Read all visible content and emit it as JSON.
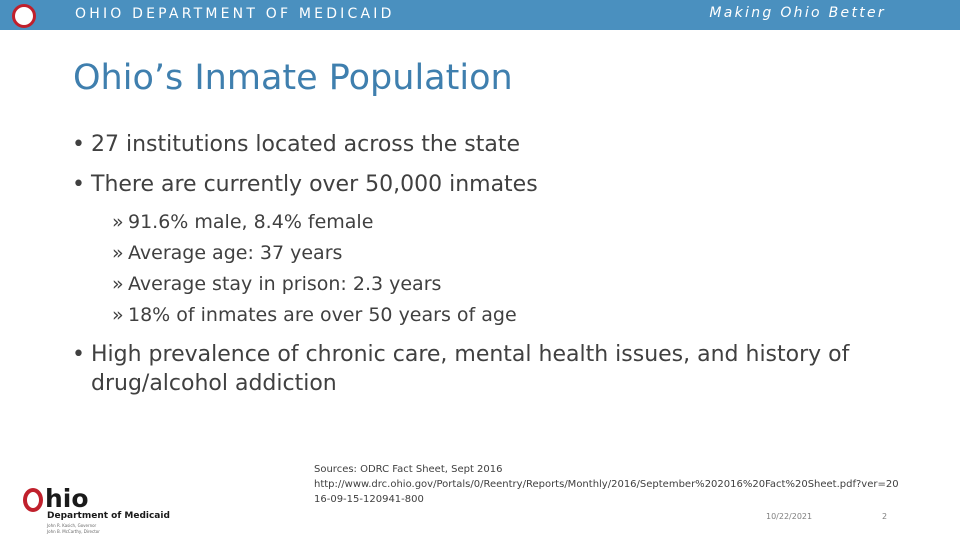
{
  "header": {
    "department": "OHIO DEPARTMENT OF MEDICAID",
    "tagline": "Making Ohio Better",
    "logo_icon": "ohio-circle-logo-icon",
    "bar_color": "#4a90bf",
    "logo_color": "#c0202c"
  },
  "slide": {
    "title": "Ohio’s Inmate Population",
    "bullet_symbol": "•",
    "sub_bullet_symbol": "»",
    "bullets": [
      "27 institutions located across the state",
      "There are currently over 50,000 inmates",
      "High prevalence of chronic care, mental health issues, and history of drug/alcohol addiction"
    ],
    "sub_bullets": [
      "91.6% male, 8.4% female",
      "Average age:  37 years",
      "Average stay in prison: 2.3 years",
      "18% of inmates are over 50 years of age"
    ]
  },
  "sources": {
    "label": "Sources: ODRC Fact Sheet, Sept 2016",
    "url": "http://www.drc.ohio.gov/Portals/0/Reentry/Reports/Monthly/2016/September%202016%20Fact%20Sheet.pdf?ver=2016-09-15-120941-800"
  },
  "logo": {
    "wordmark": "hio",
    "department": "Department of Medicaid",
    "line1": "John R. Kasich, Governor",
    "line2": "John B. McCarthy, Director"
  },
  "footer": {
    "date": "10/22/2021",
    "page_number": "2"
  }
}
